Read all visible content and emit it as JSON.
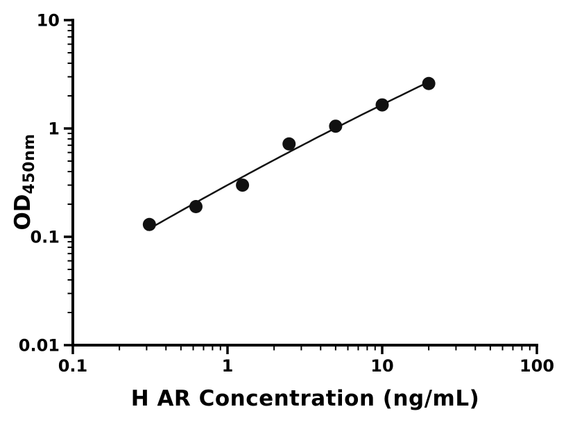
{
  "chart_data": {
    "type": "scatter",
    "title": "",
    "xlabel": "H AR Concentration (ng/mL)",
    "ylabel_main": "OD",
    "ylabel_sub": "450nm",
    "x_scale": "log",
    "y_scale": "log",
    "xlim": [
      0.1,
      100
    ],
    "ylim": [
      0.01,
      10
    ],
    "x_major_ticks": [
      0.1,
      1,
      10,
      100
    ],
    "x_tick_labels": [
      "0.1",
      "1",
      "10",
      "100"
    ],
    "y_major_ticks": [
      0.01,
      0.1,
      1,
      10
    ],
    "y_tick_labels": [
      "0.01",
      "0.1",
      "1",
      "10"
    ],
    "grid": false,
    "legend": "none",
    "points": [
      {
        "x": 0.3125,
        "y": 0.13
      },
      {
        "x": 0.625,
        "y": 0.19
      },
      {
        "x": 1.25,
        "y": 0.3
      },
      {
        "x": 2.5,
        "y": 0.72
      },
      {
        "x": 5,
        "y": 1.05
      },
      {
        "x": 10,
        "y": 1.65
      },
      {
        "x": 20,
        "y": 2.6
      }
    ],
    "fit_curve": {
      "type": "quadratic_loglog",
      "coefficients": {
        "a": -0.5226,
        "b": 0.7792,
        "c": -0.0364
      },
      "x_range": [
        0.3,
        20
      ]
    },
    "style": {
      "axis_color": "#000000",
      "point_color": "#111111",
      "curve_color": "#111111",
      "background": "#ffffff",
      "point_radius": 9.5
    }
  }
}
